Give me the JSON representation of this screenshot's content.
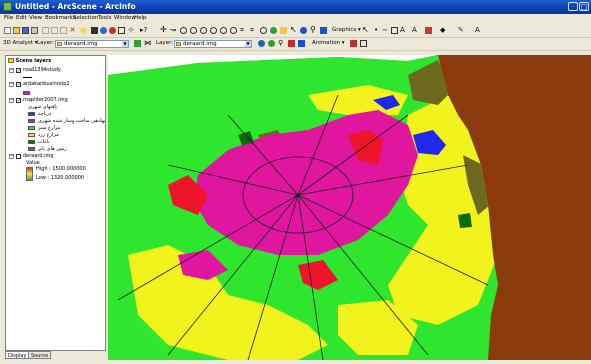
{
  "window": {
    "title": "Untitled - ArcScene - ArcInfo",
    "buttons": [
      "_",
      "□"
    ]
  },
  "menu": [
    "File",
    "Edit",
    "View",
    "Bookmarks",
    "Selection",
    "Tools",
    "Window",
    "Help"
  ],
  "toolbar1": {
    "graphics_label": "Graphics ▾"
  },
  "toolbar2": {
    "analyst_label": "3D Analyst ▾",
    "layer_label_1": "Layer:",
    "layer_value_1": "deraard.img",
    "layer_label_2": "Layer:",
    "layer_value_2": "deraard.img",
    "animation_label": "Animation ▾"
  },
  "toc": {
    "root": "Scene layers",
    "layers": [
      {
        "name": "road1394study"
      },
      {
        "name": "ardakanbusinrelp2"
      },
      {
        "name": "mapliter2007.img"
      }
    ],
    "legend_header": "بافتهای شهری",
    "legend": [
      {
        "label": "دریاچه",
        "color": "#2030e0"
      },
      {
        "label": "نهادهی ساخت وساز شده شهری",
        "color": "#d010c0"
      },
      {
        "label": "مزارع سبز",
        "color": "#30e030"
      },
      {
        "label": "مزارع زرد",
        "color": "#f0f020"
      },
      {
        "label": "باغات",
        "color": "#107010"
      },
      {
        "label": "زمین های بایر",
        "color": "#6e6a20"
      }
    ],
    "dem_layer": "deraard.img",
    "dem_value_label": "Value",
    "dem_high": "High : 1500.000000",
    "dem_low": "Low : 1320.000000",
    "dem_colors": [
      "#3aa832",
      "#f5e63c",
      "#e03c1e"
    ]
  },
  "tabs": [
    "Display",
    "Source"
  ],
  "scene": {
    "background": "#ffffff",
    "base_color": "#8b3a0b",
    "colors": {
      "green": "#2ee62e",
      "yellow": "#f2f21c",
      "magenta": "#e0169e",
      "red": "#f0142a",
      "blue": "#1e28f0",
      "olive": "#6b6a1e",
      "dark_green": "#0e6a10",
      "road": "#1c1c1c"
    }
  }
}
